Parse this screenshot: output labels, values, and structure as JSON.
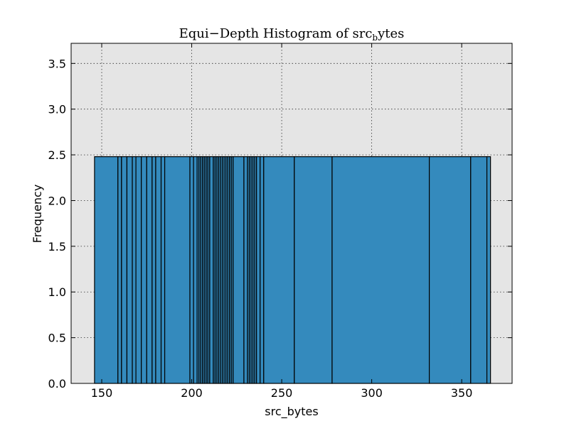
{
  "chart_data": {
    "type": "bar",
    "title": "Equi−Depth Histogram of src_bytes",
    "title_parts": {
      "main": "Equi−Depth Histogram of src",
      "subscript": "b",
      "tail": "ytes"
    },
    "xlabel": "src_bytes",
    "ylabel": "Frequency",
    "xlim": [
      133,
      378
    ],
    "ylim": [
      0,
      3.72
    ],
    "xticks": [
      150,
      200,
      250,
      300,
      350
    ],
    "yticks": [
      0.0,
      0.5,
      1.0,
      1.5,
      2.0,
      2.5,
      3.0,
      3.5
    ],
    "ytick_labels": [
      "0.0",
      "0.5",
      "1.0",
      "1.5",
      "2.0",
      "2.5",
      "3.0",
      "3.5"
    ],
    "grid": true,
    "background": "#e5e5e5",
    "bar_color": "#348abd",
    "bin_edges": [
      146,
      159,
      161,
      164,
      167,
      169,
      172,
      175,
      178,
      180,
      183,
      185,
      199,
      201,
      203,
      204,
      205,
      206,
      207,
      208,
      209,
      210,
      212,
      213,
      214,
      215,
      216,
      217,
      218,
      219,
      220,
      221,
      222,
      223,
      229,
      231,
      232,
      233,
      234,
      235,
      236,
      238,
      240,
      257,
      278,
      332,
      355,
      364,
      366
    ],
    "bar_height": 2.48
  }
}
